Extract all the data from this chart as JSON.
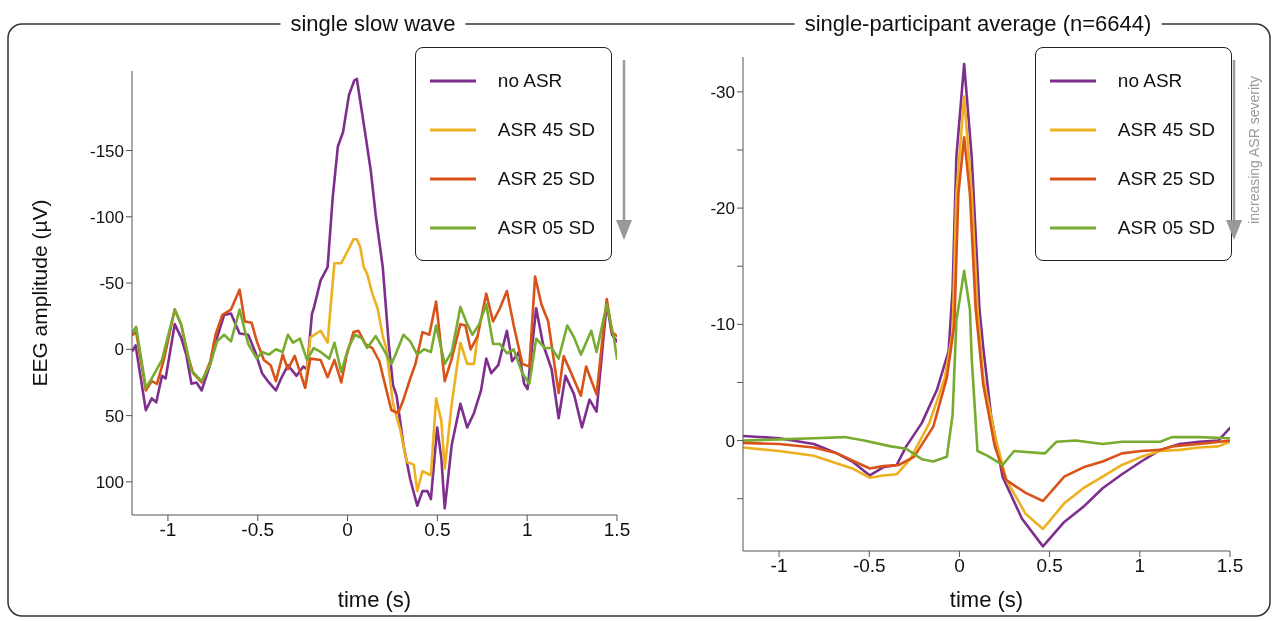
{
  "chart_data": [
    {
      "type": "line",
      "title": "single slow wave",
      "xlabel": "time (s)",
      "ylabel": "EEG amplitude (µV)",
      "xlim": [
        -1.2,
        1.5
      ],
      "xticks": [
        -1,
        -0.5,
        0,
        0.5,
        1,
        1.5
      ],
      "ylim": [
        125,
        -210
      ],
      "yticks": [
        -150,
        -100,
        -50,
        0,
        50,
        100
      ],
      "legend": "top right",
      "marker": "none",
      "line_style": "solid",
      "series": [
        {
          "name": "no ASR",
          "color": "#7e2f8e",
          "x": [
            -1.196,
            -1.18,
            -1.123,
            -1.09,
            -1.065,
            -1.033,
            -1.013,
            -0.962,
            -0.927,
            -0.898,
            -0.869,
            -0.841,
            -0.812,
            -0.764,
            -0.726,
            -0.687,
            -0.649,
            -0.601,
            -0.553,
            -0.514,
            -0.476,
            -0.438,
            -0.399,
            -0.37,
            -0.332,
            -0.284,
            -0.246,
            -0.226,
            -0.198,
            -0.188,
            -0.15,
            -0.111,
            -0.083,
            -0.054,
            -0.025,
            0.008,
            0.038,
            0.052,
            0.071,
            0.096,
            0.129,
            0.157,
            0.196,
            0.23,
            0.253,
            0.273,
            0.311,
            0.349,
            0.388,
            0.417,
            0.445,
            0.464,
            0.499,
            0.522,
            0.541,
            0.58,
            0.628,
            0.666,
            0.704,
            0.743,
            0.772,
            0.8,
            0.839,
            0.887,
            0.916,
            0.954,
            0.983,
            1.002,
            1.05,
            1.088,
            1.136,
            1.175,
            1.213,
            1.261,
            1.305,
            1.347,
            1.386,
            1.443,
            1.472,
            1.5
          ],
          "values": [
            1,
            -3,
            46,
            37,
            40,
            20,
            22,
            -19,
            -9,
            4,
            26,
            25,
            31,
            11,
            -9,
            -26,
            -27,
            -12,
            -11,
            2,
            18,
            25,
            31,
            22,
            12,
            20,
            13,
            15,
            -27,
            -31,
            -52,
            -62,
            -114,
            -153,
            -164,
            -192,
            -203,
            -204,
            -187,
            -165,
            -135,
            -101,
            -62,
            -3,
            27,
            35,
            72,
            98,
            118,
            107,
            107,
            113,
            59,
            82,
            120,
            72,
            41,
            59,
            48,
            31,
            7,
            18,
            12,
            -14,
            9,
            2,
            26,
            30,
            -31,
            -4,
            15,
            52,
            20,
            34,
            59,
            38,
            47,
            -35,
            -11,
            -6
          ]
        },
        {
          "name": "ASR 45 SD",
          "color": "#edb120",
          "x": [
            -0.236,
            -0.207,
            -0.15,
            -0.111,
            -0.092,
            -0.073,
            -0.035,
            0.004,
            0.033,
            0.052,
            0.071,
            0.09,
            0.109,
            0.138,
            0.167,
            0.196,
            0.215,
            0.253,
            0.292,
            0.33,
            0.369,
            0.388,
            0.417,
            0.464,
            0.493,
            0.522,
            0.541,
            0.58,
            0.628,
            0.666,
            0.704,
            0.724
          ],
          "values": [
            29,
            -9,
            -14,
            -5,
            -36,
            -65,
            -65,
            -75,
            -83,
            -83,
            -77,
            -62,
            -57,
            -42,
            -31,
            -10,
            -1,
            41,
            60,
            85,
            87,
            107,
            92,
            95,
            37,
            54,
            90,
            41,
            -5,
            11,
            11,
            -10
          ]
        },
        {
          "name": "ASR 25 SD",
          "color": "#d95319",
          "x": [
            -1.196,
            -1.177,
            -1.123,
            -1.09,
            -1.061,
            -1.023,
            -0.962,
            -0.927,
            -0.889,
            -0.86,
            -0.812,
            -0.764,
            -0.735,
            -0.697,
            -0.649,
            -0.601,
            -0.572,
            -0.534,
            -0.505,
            -0.466,
            -0.428,
            -0.399,
            -0.361,
            -0.332,
            -0.294,
            -0.236,
            -0.207,
            -0.15,
            -0.111,
            -0.073,
            -0.035,
            -0.006,
            0.033,
            0.061,
            0.1,
            0.138,
            0.177,
            0.215,
            0.244,
            0.282,
            0.311,
            0.349,
            0.378,
            0.417,
            0.455,
            0.493,
            0.541,
            0.58,
            0.628,
            0.656,
            0.685,
            0.724,
            0.772,
            0.81,
            0.848,
            0.887,
            0.925,
            0.973,
            1.012,
            1.044,
            1.079,
            1.117,
            1.175,
            1.203,
            1.242,
            1.299,
            1.328,
            1.386,
            1.443,
            1.472,
            1.5
          ],
          "values": [
            -11,
            -13,
            31,
            24,
            26,
            8,
            -30,
            -19,
            5,
            18,
            25,
            9,
            -11,
            -26,
            -30,
            -45,
            -21,
            -20,
            -6,
            8,
            12,
            24,
            4,
            15,
            5,
            29,
            7,
            8,
            21,
            8,
            25,
            5,
            -13,
            -14,
            -4,
            -1,
            9,
            30,
            46,
            48,
            38,
            22,
            11,
            -13,
            -11,
            -36,
            24,
            7,
            -19,
            -18,
            0,
            -10,
            -42,
            -21,
            -31,
            -44,
            -18,
            11,
            13,
            -55,
            -34,
            -21,
            33,
            5,
            17,
            35,
            13,
            34,
            -38,
            -13,
            -10
          ]
        },
        {
          "name": "ASR 05 SD",
          "color": "#77ac30",
          "x": [
            -1.196,
            -1.177,
            -1.123,
            -1.09,
            -1.033,
            -0.962,
            -0.927,
            -0.869,
            -0.812,
            -0.764,
            -0.726,
            -0.687,
            -0.649,
            -0.601,
            -0.553,
            -0.505,
            -0.476,
            -0.438,
            -0.399,
            -0.361,
            -0.332,
            -0.303,
            -0.265,
            -0.226,
            -0.188,
            -0.15,
            -0.102,
            -0.073,
            -0.035,
            0.004,
            0.042,
            0.081,
            0.109,
            0.157,
            0.196,
            0.244,
            0.273,
            0.311,
            0.349,
            0.388,
            0.426,
            0.464,
            0.493,
            0.541,
            0.58,
            0.628,
            0.666,
            0.695,
            0.733,
            0.772,
            0.81,
            0.848,
            0.887,
            0.925,
            0.973,
            1.012,
            1.05,
            1.098,
            1.136,
            1.175,
            1.223,
            1.261,
            1.299,
            1.357,
            1.386,
            1.443,
            1.482,
            1.5
          ],
          "values": [
            -13,
            -17,
            29,
            22,
            8,
            -30,
            -19,
            16,
            24,
            11,
            -6,
            -11,
            -6,
            -30,
            -4,
            7,
            2,
            4,
            0,
            2,
            -11,
            -5,
            -8,
            8,
            -1,
            2,
            7,
            -5,
            17,
            -1,
            -11,
            -8,
            -1,
            -10,
            -1,
            11,
            2,
            -11,
            -6,
            4,
            0,
            2,
            -18,
            11,
            2,
            -32,
            -19,
            -11,
            -19,
            -34,
            -4,
            -4,
            3,
            0,
            18,
            26,
            -8,
            -1,
            -1,
            7,
            -18,
            -9,
            4,
            -14,
            2,
            -34,
            -9,
            7
          ]
        }
      ]
    },
    {
      "type": "line",
      "title": "single-participant average (n=6644)",
      "xlabel": "time (s)",
      "xlim": [
        -1.2,
        1.5
      ],
      "xticks": [
        -1,
        -0.5,
        0,
        0.5,
        1,
        1.5
      ],
      "ylim": [
        9.5,
        -33
      ],
      "yticks": [
        -30,
        {
          "value": -25,
          "label": null
        },
        -20,
        {
          "value": -15,
          "label": null
        },
        -10,
        {
          "value": -5,
          "label": null
        },
        0,
        {
          "value": 5,
          "label": null
        }
      ],
      "legend": "top right",
      "marker": "none",
      "line_style": "solid",
      "annotations": [
        "increasing ASR severity"
      ],
      "series": [
        {
          "name": "no ASR",
          "color": "#7e2f8e",
          "x": [
            -1.2,
            -1.0,
            -0.807,
            -0.679,
            -0.594,
            -0.497,
            -0.423,
            -0.348,
            -0.295,
            -0.209,
            -0.124,
            -0.06,
            -0.038,
            -0.017,
            0.026,
            0.068,
            0.111,
            0.132,
            0.175,
            0.239,
            0.346,
            0.463,
            0.581,
            0.687,
            0.794,
            0.901,
            1.008,
            1.114,
            1.221,
            1.328,
            1.435,
            1.5
          ],
          "values": [
            -0.4,
            -0.2,
            0.3,
            1.1,
            1.8,
            3.0,
            2.3,
            2.1,
            0.5,
            -1.5,
            -4.4,
            -7.7,
            -13,
            -24.4,
            -32.4,
            -24.4,
            -11.3,
            -8.0,
            -2.2,
            3.1,
            6.7,
            9.1,
            7.0,
            5.7,
            4.1,
            2.9,
            1.8,
            0.8,
            0.3,
            0.1,
            0,
            -1.1
          ]
        },
        {
          "name": "ASR 45 SD",
          "color": "#edb120",
          "x": [
            -1.2,
            -1.0,
            -0.807,
            -0.594,
            -0.497,
            -0.423,
            -0.348,
            -0.273,
            -0.167,
            -0.081,
            -0.038,
            -0.017,
            0.026,
            0.068,
            0.1,
            0.132,
            0.196,
            0.26,
            0.367,
            0.463,
            0.581,
            0.687,
            0.794,
            0.901,
            1.008,
            1.114,
            1.221,
            1.328,
            1.435,
            1.5
          ],
          "values": [
            0.6,
            0.9,
            1.3,
            2.4,
            3.2,
            3.0,
            2.9,
            1.6,
            -1.5,
            -5.4,
            -9.3,
            -21.2,
            -29.6,
            -21.2,
            -11.3,
            -5.4,
            -0.5,
            3.4,
            6.3,
            7.6,
            5.4,
            4.1,
            3.1,
            2.1,
            1.4,
            0.9,
            0.8,
            0.6,
            0.5,
            0.1
          ]
        },
        {
          "name": "ASR 25 SD",
          "color": "#d95319",
          "x": [
            -1.2,
            -1.0,
            -0.807,
            -0.679,
            -0.497,
            -0.423,
            -0.337,
            -0.252,
            -0.145,
            -0.07,
            -0.028,
            -0.006,
            0.026,
            0.058,
            0.09,
            0.132,
            0.196,
            0.26,
            0.367,
            0.463,
            0.581,
            0.687,
            0.794,
            0.901,
            1.008,
            1.114,
            1.178,
            1.328,
            1.5
          ],
          "values": [
            0.2,
            0.3,
            0.6,
            1.1,
            2.4,
            2.2,
            2.1,
            1.4,
            -1.2,
            -5.4,
            -10,
            -21.2,
            -26.1,
            -21.2,
            -11.3,
            -4.8,
            0.5,
            3.4,
            4.5,
            5.2,
            3.1,
            2.3,
            1.8,
            1.1,
            0.9,
            0.8,
            0.5,
            0.3,
            0
          ]
        },
        {
          "name": "ASR 05 SD",
          "color": "#77ac30",
          "x": [
            -1.2,
            -1.0,
            -0.807,
            -0.636,
            -0.529,
            -0.38,
            -0.295,
            -0.209,
            -0.145,
            -0.07,
            -0.038,
            -0.017,
            0.026,
            0.058,
            0.068,
            0.1,
            0.154,
            0.239,
            0.303,
            0.474,
            0.538,
            0.645,
            0.794,
            0.901,
            1.114,
            1.178,
            1.328,
            1.5
          ],
          "values": [
            0,
            -0.1,
            -0.2,
            -0.3,
            0,
            0.5,
            0.7,
            1.6,
            1.8,
            1.4,
            -2.2,
            -10.3,
            -14.6,
            -11.3,
            -7.1,
            0.9,
            1.3,
            2.1,
            0.9,
            1.1,
            0.1,
            0,
            0.3,
            0.1,
            0.1,
            -0.3,
            -0.3,
            -0.2
          ]
        }
      ]
    }
  ]
}
